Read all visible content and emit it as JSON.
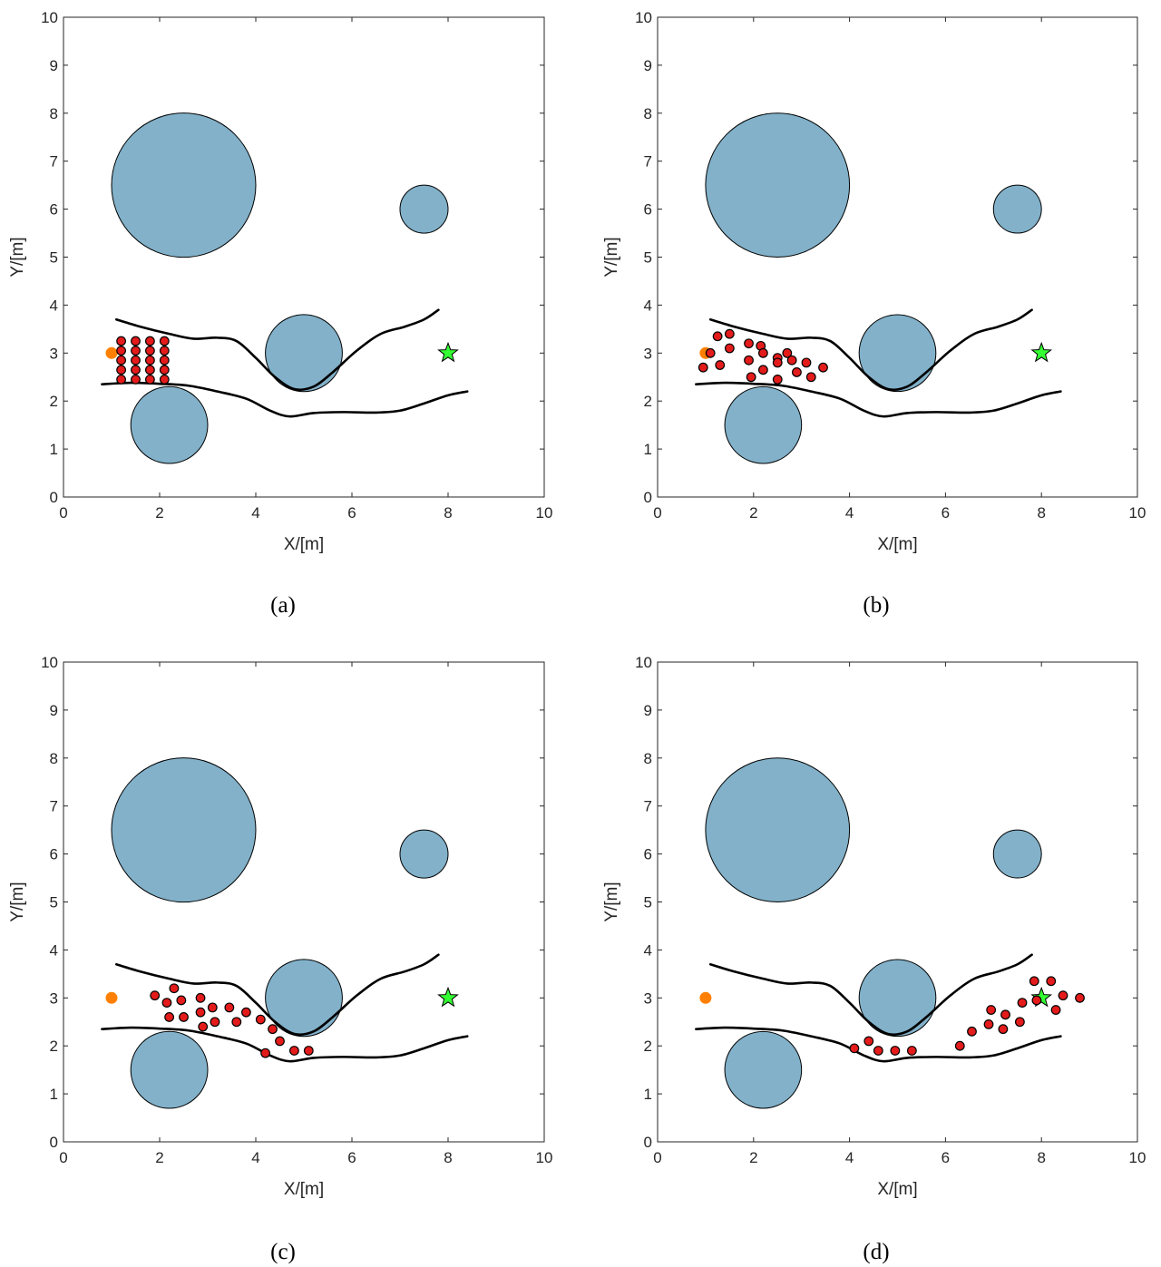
{
  "figure": {
    "panel_labels": [
      "(a)",
      "(b)",
      "(c)",
      "(d)"
    ]
  },
  "colors": {
    "obstacle_fill": "#82b1c9",
    "robot_fill": "#e41b1b",
    "start_fill": "#ff8000",
    "goal_fill": "#33ff33",
    "outline": "#000000"
  },
  "chart_data": [
    {
      "type": "scatter",
      "panel": "(a)",
      "xlabel": "X/[m]",
      "ylabel": "Y/[m]",
      "xlim": [
        0,
        10
      ],
      "ylim": [
        0,
        10
      ],
      "xticks": [
        "0",
        "2",
        "4",
        "6",
        "8",
        "10"
      ],
      "yticks": [
        "0",
        "1",
        "2",
        "3",
        "4",
        "5",
        "6",
        "7",
        "8",
        "9",
        "10"
      ],
      "grid": false,
      "obstacles": [
        {
          "cx": 2.5,
          "cy": 6.5,
          "r": 1.5
        },
        {
          "cx": 7.5,
          "cy": 6.0,
          "r": 0.5
        },
        {
          "cx": 5.0,
          "cy": 3.0,
          "r": 0.8
        },
        {
          "cx": 2.2,
          "cy": 1.5,
          "r": 0.8
        }
      ],
      "upper_boundary": [
        [
          1.1,
          3.7
        ],
        [
          1.6,
          3.55
        ],
        [
          2.2,
          3.4
        ],
        [
          2.7,
          3.3
        ],
        [
          3.2,
          3.32
        ],
        [
          3.6,
          3.25
        ],
        [
          4.0,
          2.9
        ],
        [
          4.4,
          2.5
        ],
        [
          4.8,
          2.25
        ],
        [
          5.2,
          2.3
        ],
        [
          5.6,
          2.6
        ],
        [
          6.1,
          3.05
        ],
        [
          6.6,
          3.4
        ],
        [
          7.1,
          3.55
        ],
        [
          7.5,
          3.7
        ],
        [
          7.8,
          3.9
        ]
      ],
      "lower_boundary": [
        [
          0.8,
          2.35
        ],
        [
          1.4,
          2.38
        ],
        [
          2.0,
          2.36
        ],
        [
          2.6,
          2.32
        ],
        [
          3.2,
          2.2
        ],
        [
          3.8,
          2.05
        ],
        [
          4.3,
          1.8
        ],
        [
          4.7,
          1.68
        ],
        [
          5.2,
          1.75
        ],
        [
          5.8,
          1.77
        ],
        [
          6.5,
          1.76
        ],
        [
          7.0,
          1.8
        ],
        [
          7.5,
          1.95
        ],
        [
          8.0,
          2.12
        ],
        [
          8.4,
          2.2
        ]
      ],
      "start": [
        1.0,
        3.0
      ],
      "goal": [
        8.0,
        3.0
      ],
      "robots": [
        [
          1.2,
          3.25
        ],
        [
          1.5,
          3.25
        ],
        [
          1.8,
          3.25
        ],
        [
          2.1,
          3.25
        ],
        [
          1.2,
          3.05
        ],
        [
          1.5,
          3.05
        ],
        [
          1.8,
          3.05
        ],
        [
          2.1,
          3.05
        ],
        [
          1.2,
          2.85
        ],
        [
          1.5,
          2.85
        ],
        [
          1.8,
          2.85
        ],
        [
          2.1,
          2.85
        ],
        [
          1.2,
          2.65
        ],
        [
          1.5,
          2.65
        ],
        [
          1.8,
          2.65
        ],
        [
          2.1,
          2.65
        ],
        [
          1.2,
          2.45
        ],
        [
          1.5,
          2.45
        ],
        [
          1.8,
          2.45
        ],
        [
          2.1,
          2.45
        ]
      ]
    },
    {
      "type": "scatter",
      "panel": "(b)",
      "xlabel": "X/[m]",
      "ylabel": "Y/[m]",
      "xlim": [
        0,
        10
      ],
      "ylim": [
        0,
        10
      ],
      "xticks": [
        "0",
        "2",
        "4",
        "6",
        "8",
        "10"
      ],
      "yticks": [
        "0",
        "1",
        "2",
        "3",
        "4",
        "5",
        "6",
        "7",
        "8",
        "9",
        "10"
      ],
      "grid": false,
      "obstacles": [
        {
          "cx": 2.5,
          "cy": 6.5,
          "r": 1.5
        },
        {
          "cx": 7.5,
          "cy": 6.0,
          "r": 0.5
        },
        {
          "cx": 5.0,
          "cy": 3.0,
          "r": 0.8
        },
        {
          "cx": 2.2,
          "cy": 1.5,
          "r": 0.8
        }
      ],
      "upper_boundary": [
        [
          1.1,
          3.7
        ],
        [
          1.6,
          3.55
        ],
        [
          2.2,
          3.4
        ],
        [
          2.7,
          3.3
        ],
        [
          3.2,
          3.32
        ],
        [
          3.6,
          3.25
        ],
        [
          4.0,
          2.9
        ],
        [
          4.4,
          2.5
        ],
        [
          4.8,
          2.25
        ],
        [
          5.2,
          2.3
        ],
        [
          5.6,
          2.6
        ],
        [
          6.1,
          3.05
        ],
        [
          6.6,
          3.4
        ],
        [
          7.1,
          3.55
        ],
        [
          7.5,
          3.7
        ],
        [
          7.8,
          3.9
        ]
      ],
      "lower_boundary": [
        [
          0.8,
          2.35
        ],
        [
          1.4,
          2.38
        ],
        [
          2.0,
          2.36
        ],
        [
          2.6,
          2.32
        ],
        [
          3.2,
          2.2
        ],
        [
          3.8,
          2.05
        ],
        [
          4.3,
          1.8
        ],
        [
          4.7,
          1.68
        ],
        [
          5.2,
          1.75
        ],
        [
          5.8,
          1.77
        ],
        [
          6.5,
          1.76
        ],
        [
          7.0,
          1.8
        ],
        [
          7.5,
          1.95
        ],
        [
          8.0,
          2.12
        ],
        [
          8.4,
          2.2
        ]
      ],
      "start": [
        1.0,
        3.0
      ],
      "goal": [
        8.0,
        3.0
      ],
      "robots": [
        [
          1.25,
          3.35
        ],
        [
          1.5,
          3.4
        ],
        [
          1.1,
          3.0
        ],
        [
          1.5,
          3.1
        ],
        [
          1.9,
          3.2
        ],
        [
          2.15,
          3.15
        ],
        [
          0.95,
          2.7
        ],
        [
          1.3,
          2.75
        ],
        [
          1.9,
          2.85
        ],
        [
          2.2,
          3.0
        ],
        [
          2.5,
          2.9
        ],
        [
          2.7,
          3.0
        ],
        [
          2.2,
          2.65
        ],
        [
          2.5,
          2.8
        ],
        [
          2.8,
          2.85
        ],
        [
          3.1,
          2.8
        ],
        [
          1.95,
          2.5
        ],
        [
          2.5,
          2.45
        ],
        [
          2.9,
          2.6
        ],
        [
          3.2,
          2.5
        ],
        [
          3.45,
          2.7
        ]
      ]
    },
    {
      "type": "scatter",
      "panel": "(c)",
      "xlabel": "X/[m]",
      "ylabel": "Y/[m]",
      "xlim": [
        0,
        10
      ],
      "ylim": [
        0,
        10
      ],
      "xticks": [
        "0",
        "2",
        "4",
        "6",
        "8",
        "10"
      ],
      "yticks": [
        "0",
        "1",
        "2",
        "3",
        "4",
        "5",
        "6",
        "7",
        "8",
        "9",
        "10"
      ],
      "grid": false,
      "obstacles": [
        {
          "cx": 2.5,
          "cy": 6.5,
          "r": 1.5
        },
        {
          "cx": 7.5,
          "cy": 6.0,
          "r": 0.5
        },
        {
          "cx": 5.0,
          "cy": 3.0,
          "r": 0.8
        },
        {
          "cx": 2.2,
          "cy": 1.5,
          "r": 0.8
        }
      ],
      "upper_boundary": [
        [
          1.1,
          3.7
        ],
        [
          1.6,
          3.55
        ],
        [
          2.2,
          3.4
        ],
        [
          2.7,
          3.3
        ],
        [
          3.2,
          3.32
        ],
        [
          3.6,
          3.25
        ],
        [
          4.0,
          2.9
        ],
        [
          4.4,
          2.5
        ],
        [
          4.8,
          2.25
        ],
        [
          5.2,
          2.3
        ],
        [
          5.6,
          2.6
        ],
        [
          6.1,
          3.05
        ],
        [
          6.6,
          3.4
        ],
        [
          7.1,
          3.55
        ],
        [
          7.5,
          3.7
        ],
        [
          7.8,
          3.9
        ]
      ],
      "lower_boundary": [
        [
          0.8,
          2.35
        ],
        [
          1.4,
          2.38
        ],
        [
          2.0,
          2.36
        ],
        [
          2.6,
          2.32
        ],
        [
          3.2,
          2.2
        ],
        [
          3.8,
          2.05
        ],
        [
          4.3,
          1.8
        ],
        [
          4.7,
          1.68
        ],
        [
          5.2,
          1.75
        ],
        [
          5.8,
          1.77
        ],
        [
          6.5,
          1.76
        ],
        [
          7.0,
          1.8
        ],
        [
          7.5,
          1.95
        ],
        [
          8.0,
          2.12
        ],
        [
          8.4,
          2.2
        ]
      ],
      "start": [
        1.0,
        3.0
      ],
      "goal": [
        8.0,
        3.0
      ],
      "robots": [
        [
          2.3,
          3.2
        ],
        [
          1.9,
          3.05
        ],
        [
          2.15,
          2.9
        ],
        [
          2.45,
          2.95
        ],
        [
          2.85,
          3.0
        ],
        [
          3.1,
          2.8
        ],
        [
          3.45,
          2.8
        ],
        [
          3.8,
          2.7
        ],
        [
          2.2,
          2.6
        ],
        [
          2.5,
          2.6
        ],
        [
          2.85,
          2.7
        ],
        [
          3.15,
          2.5
        ],
        [
          3.6,
          2.5
        ],
        [
          4.1,
          2.55
        ],
        [
          2.9,
          2.4
        ],
        [
          4.35,
          2.35
        ],
        [
          4.5,
          2.1
        ],
        [
          4.2,
          1.85
        ],
        [
          4.8,
          1.9
        ],
        [
          5.1,
          1.9
        ]
      ]
    },
    {
      "type": "scatter",
      "panel": "(d)",
      "xlabel": "X/[m]",
      "ylabel": "Y/[m]",
      "xlim": [
        0,
        10
      ],
      "ylim": [
        0,
        10
      ],
      "xticks": [
        "0",
        "2",
        "4",
        "6",
        "8",
        "10"
      ],
      "yticks": [
        "0",
        "1",
        "2",
        "3",
        "4",
        "5",
        "6",
        "7",
        "8",
        "9",
        "10"
      ],
      "grid": false,
      "obstacles": [
        {
          "cx": 2.5,
          "cy": 6.5,
          "r": 1.5
        },
        {
          "cx": 7.5,
          "cy": 6.0,
          "r": 0.5
        },
        {
          "cx": 5.0,
          "cy": 3.0,
          "r": 0.8
        },
        {
          "cx": 2.2,
          "cy": 1.5,
          "r": 0.8
        }
      ],
      "upper_boundary": [
        [
          1.1,
          3.7
        ],
        [
          1.6,
          3.55
        ],
        [
          2.2,
          3.4
        ],
        [
          2.7,
          3.3
        ],
        [
          3.2,
          3.32
        ],
        [
          3.6,
          3.25
        ],
        [
          4.0,
          2.9
        ],
        [
          4.4,
          2.5
        ],
        [
          4.8,
          2.25
        ],
        [
          5.2,
          2.3
        ],
        [
          5.6,
          2.6
        ],
        [
          6.1,
          3.05
        ],
        [
          6.6,
          3.4
        ],
        [
          7.1,
          3.55
        ],
        [
          7.5,
          3.7
        ],
        [
          7.8,
          3.9
        ]
      ],
      "lower_boundary": [
        [
          0.8,
          2.35
        ],
        [
          1.4,
          2.38
        ],
        [
          2.0,
          2.36
        ],
        [
          2.6,
          2.32
        ],
        [
          3.2,
          2.2
        ],
        [
          3.8,
          2.05
        ],
        [
          4.3,
          1.8
        ],
        [
          4.7,
          1.68
        ],
        [
          5.2,
          1.75
        ],
        [
          5.8,
          1.77
        ],
        [
          6.5,
          1.76
        ],
        [
          7.0,
          1.8
        ],
        [
          7.5,
          1.95
        ],
        [
          8.0,
          2.12
        ],
        [
          8.4,
          2.2
        ]
      ],
      "start": [
        1.0,
        3.0
      ],
      "goal": [
        8.0,
        3.0
      ],
      "robots": [
        [
          4.1,
          1.95
        ],
        [
          4.4,
          2.1
        ],
        [
          4.6,
          1.9
        ],
        [
          4.95,
          1.9
        ],
        [
          5.3,
          1.9
        ],
        [
          6.3,
          2.0
        ],
        [
          6.55,
          2.3
        ],
        [
          6.9,
          2.45
        ],
        [
          7.2,
          2.35
        ],
        [
          7.55,
          2.5
        ],
        [
          6.95,
          2.75
        ],
        [
          7.25,
          2.65
        ],
        [
          7.6,
          2.9
        ],
        [
          7.85,
          3.35
        ],
        [
          8.2,
          3.35
        ],
        [
          8.3,
          2.75
        ],
        [
          8.45,
          3.05
        ],
        [
          8.8,
          3.0
        ],
        [
          7.9,
          2.95
        ]
      ]
    }
  ]
}
